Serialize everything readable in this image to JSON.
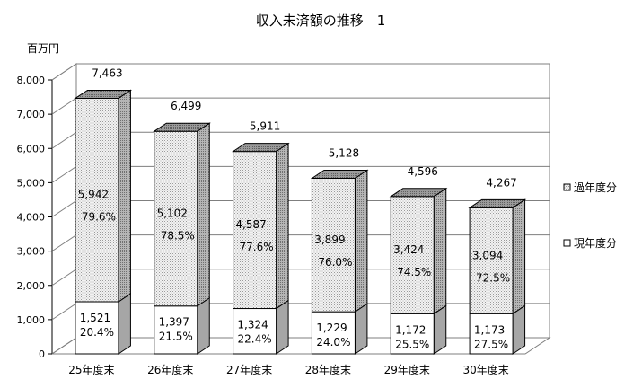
{
  "chart_data": {
    "type": "bar",
    "stacked": true,
    "three_d": true,
    "title": "収入未済額の推移　1",
    "ylabel": "百万円",
    "xlabel": "",
    "ylim": [
      0,
      8000
    ],
    "yticks": [
      "0",
      "1,000",
      "2,000",
      "3,000",
      "4,000",
      "5,000",
      "6,000",
      "7,000",
      "8,000"
    ],
    "categories": [
      "25年度末",
      "26年度末",
      "27年度末",
      "28年度末",
      "29年度末",
      "30年度末"
    ],
    "series": [
      {
        "name": "現年度分",
        "values": [
          1521,
          1397,
          1324,
          1229,
          1172,
          1173
        ],
        "value_labels": [
          "1,521",
          "1,397",
          "1,324",
          "1,229",
          "1,172",
          "1,173"
        ],
        "percent_labels": [
          "20.4%",
          "21.5%",
          "22.4%",
          "24.0%",
          "25.5%",
          "27.5%"
        ],
        "fill": "#ffffff"
      },
      {
        "name": "過年度分",
        "values": [
          5942,
          5102,
          4587,
          3899,
          3424,
          3094
        ],
        "value_labels": [
          "5,942",
          "5,102",
          "4,587",
          "3,899",
          "3,424",
          "3,094"
        ],
        "percent_labels": [
          "79.6%",
          "78.5%",
          "77.6%",
          "76.0%",
          "74.5%",
          "72.5%"
        ],
        "fill": "dotted"
      }
    ],
    "totals": [
      7463,
      6499,
      5911,
      5128,
      4596,
      4267
    ],
    "total_labels": [
      "7,463",
      "6,499",
      "5,911",
      "5,128",
      "4,596",
      "4,267"
    ],
    "grid": true,
    "legend": {
      "position": "right",
      "order": [
        "過年度分",
        "現年度分"
      ]
    },
    "colors": {
      "side": "#a6a6a6",
      "top": "#8c8c8c",
      "grid": "#7f7f7f",
      "edge": "#000000"
    }
  }
}
